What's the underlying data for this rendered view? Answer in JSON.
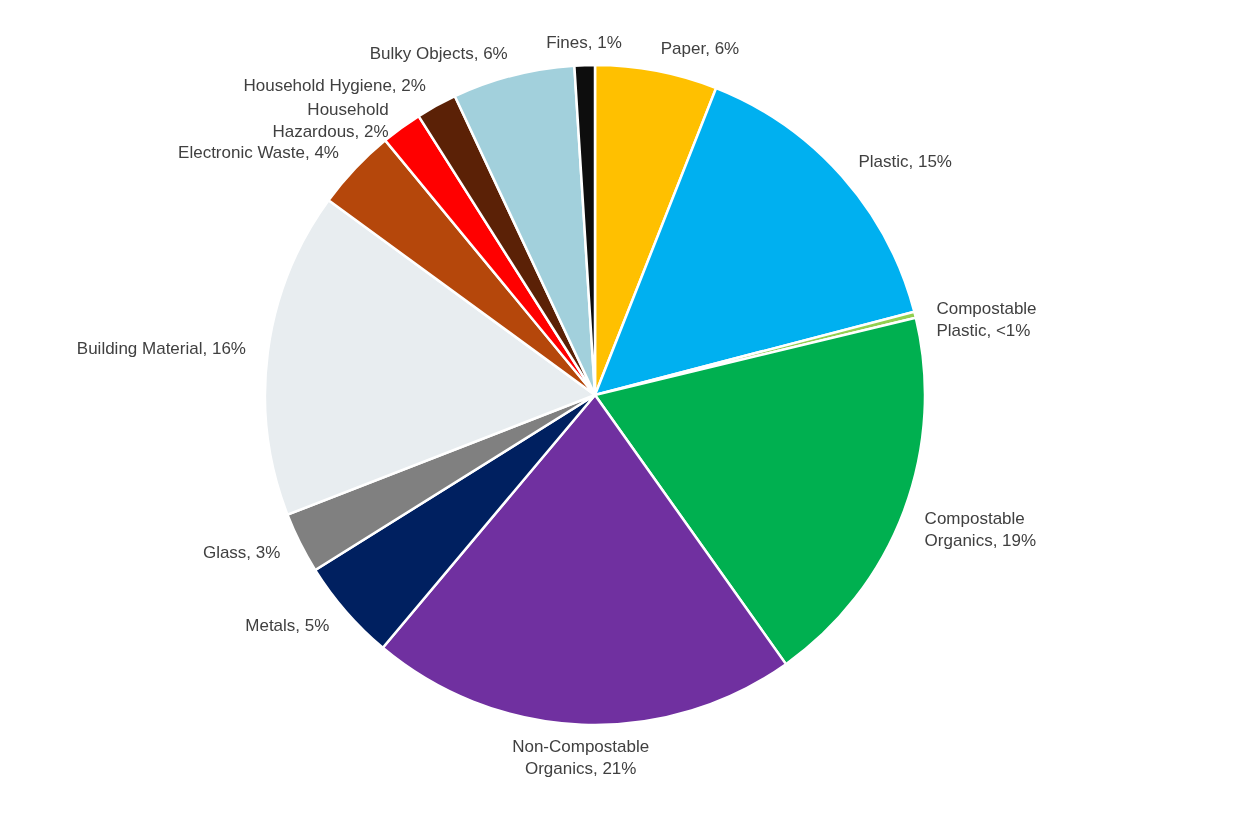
{
  "chart_data": {
    "type": "pie",
    "categories": [
      "Paper",
      "Plastic",
      "Compostable Plastic",
      "Compostable Organics",
      "Non-Compostable Organics",
      "Metals",
      "Glass",
      "Building Material",
      "Electronic Waste",
      "Household Hazardous",
      "Household Hygiene",
      "Bulky Objects",
      "Fines"
    ],
    "values": [
      6,
      15,
      0.3,
      19,
      21,
      5,
      3,
      16,
      4,
      2,
      2,
      6,
      1
    ],
    "value_labels": [
      "6%",
      "15%",
      "<1%",
      "19%",
      "21%",
      "5%",
      "3%",
      "16%",
      "4%",
      "2%",
      "2%",
      "6%",
      "1%"
    ],
    "colors": [
      "#ffc000",
      "#00b0f0",
      "#92d050",
      "#00b050",
      "#7030a0",
      "#002060",
      "#808080",
      "#e8edf0",
      "#b5470b",
      "#ff0000",
      "#5b2106",
      "#a2d0dc",
      "#0d0d0d"
    ],
    "legend": false
  }
}
